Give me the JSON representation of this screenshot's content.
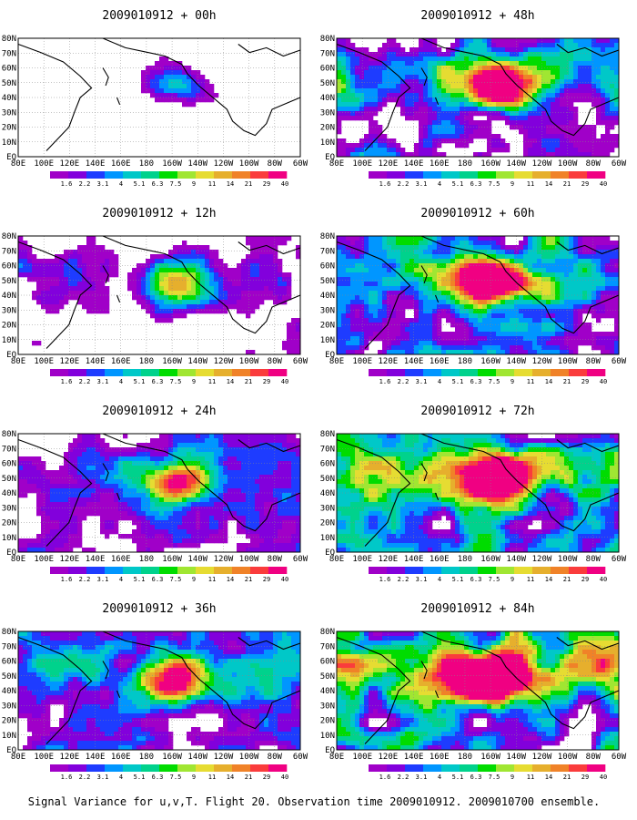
{
  "chart_data": {
    "type": "heatmap",
    "caption": "Signal Variance for u,v,T. Flight 20. Observation time 2009010912. 2009010700 ensemble.",
    "x_ticks": [
      "80E",
      "100E",
      "120E",
      "140E",
      "160E",
      "180",
      "160W",
      "140W",
      "120W",
      "100W",
      "80W",
      "60W"
    ],
    "y_ticks": [
      "80N",
      "70N",
      "60N",
      "50N",
      "40N",
      "30N",
      "20N",
      "10N",
      "EQ"
    ],
    "colorbar": {
      "levels": [
        "1.6",
        "2.2",
        "3.1",
        "4",
        "5.1",
        "6.3",
        "7.5",
        "9",
        "11",
        "14",
        "21",
        "29",
        "40"
      ],
      "colors": [
        "#a000c8",
        "#8200dc",
        "#1e3cff",
        "#0096ff",
        "#00c8c8",
        "#00d28c",
        "#00dc00",
        "#a0e632",
        "#e6dc32",
        "#e6af2d",
        "#f08228",
        "#fa3c3c",
        "#f00082"
      ]
    },
    "panels": [
      {
        "title": "2009010912 + 00h",
        "strength": 0.15
      },
      {
        "title": "2009010912 + 12h",
        "strength": 0.35
      },
      {
        "title": "2009010912 + 24h",
        "strength": 0.5
      },
      {
        "title": "2009010912 + 36h",
        "strength": 0.6
      },
      {
        "title": "2009010912 + 48h",
        "strength": 0.7
      },
      {
        "title": "2009010912 + 60h",
        "strength": 0.78
      },
      {
        "title": "2009010912 + 72h",
        "strength": 0.86
      },
      {
        "title": "2009010912 + 84h",
        "strength": 0.95
      }
    ]
  }
}
